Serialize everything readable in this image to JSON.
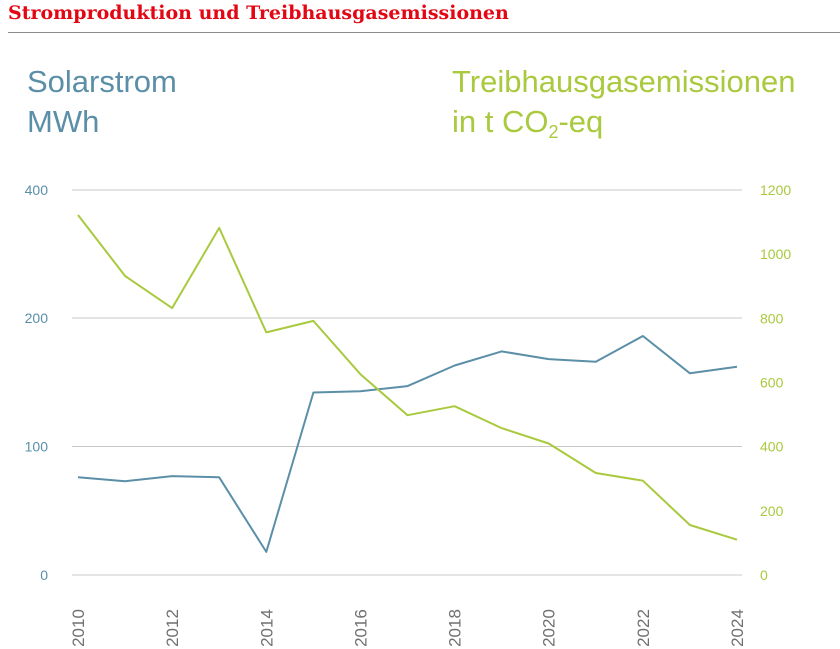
{
  "title": "Stromproduktion und Treibhausgasemissionen",
  "colors": {
    "title": "#e30613",
    "solar": "#5b8fa8",
    "emissions": "#a9c93e",
    "grid": "#c8c8c8",
    "x_ticks": "#707070"
  },
  "left_header": {
    "line1": "Solarstrom",
    "line2": "MWh"
  },
  "right_header": {
    "line1": "Treibhausgasemissionen",
    "line2_pre": "in t CO",
    "line2_sub": "2",
    "line2_post": "-eq"
  },
  "chart_data": {
    "type": "line",
    "title": "Stromproduktion und Treibhausgasemissionen",
    "x": [
      2010,
      2011,
      2012,
      2013,
      2014,
      2015,
      2016,
      2017,
      2018,
      2019,
      2020,
      2021,
      2022,
      2023,
      2024
    ],
    "x_ticks": [
      "2010",
      "2012",
      "2014",
      "2016",
      "2018",
      "2020",
      "2022",
      "2024"
    ],
    "left_axis": {
      "label": "Solarstrom MWh",
      "ticks": [
        "0",
        "100",
        "200",
        "400"
      ]
    },
    "right_axis": {
      "label": "Treibhausgasemissionen in t CO2-eq",
      "range": [
        0,
        1200
      ],
      "ticks": [
        "0",
        "200",
        "400",
        "600",
        "800",
        "1000",
        "1200"
      ]
    },
    "series": [
      {
        "name": "Solarstrom",
        "axis": "left",
        "values": [
          76,
          73,
          77,
          76,
          18,
          142,
          143,
          147,
          163,
          174,
          168,
          166,
          186,
          157,
          162
        ]
      },
      {
        "name": "Treibhausgasemissionen",
        "axis": "right",
        "values": [
          1122,
          932,
          832,
          1082,
          756,
          792,
          626,
          498,
          526,
          458,
          410,
          318,
          294,
          156,
          110
        ]
      }
    ],
    "grid": true,
    "legend": "none"
  }
}
